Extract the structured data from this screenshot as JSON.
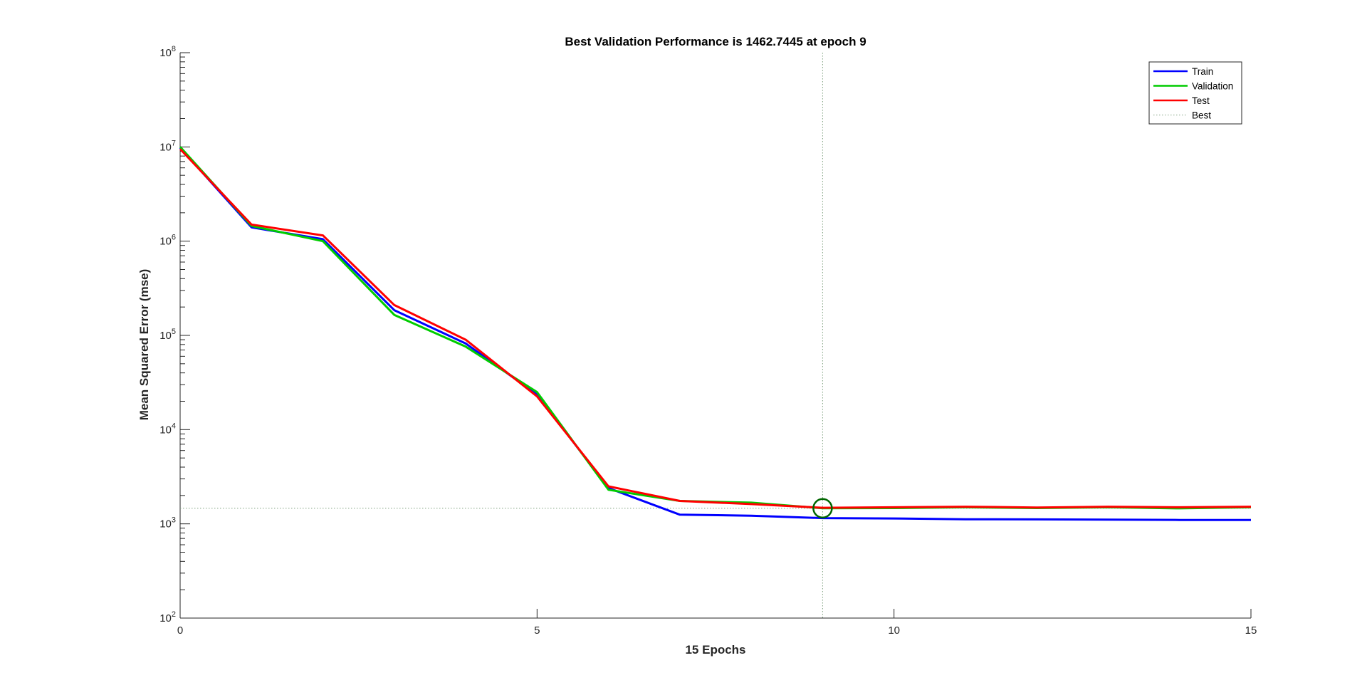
{
  "chart_data": {
    "type": "line",
    "title": "Best Validation Performance is 1462.7445 at epoch 9",
    "xlabel": "15 Epochs",
    "ylabel": "Mean Squared Error  (mse)",
    "xlim": [
      0,
      15
    ],
    "ylim": [
      100,
      100000000
    ],
    "yscale": "log",
    "x_ticks": [
      "0",
      "5",
      "10",
      "15"
    ],
    "y_ticks": [
      {
        "base": "10",
        "exp": "2"
      },
      {
        "base": "10",
        "exp": "3"
      },
      {
        "base": "10",
        "exp": "4"
      },
      {
        "base": "10",
        "exp": "5"
      },
      {
        "base": "10",
        "exp": "6"
      },
      {
        "base": "10",
        "exp": "7"
      },
      {
        "base": "10",
        "exp": "8"
      }
    ],
    "grid": false,
    "legend_position": "top-right",
    "x": [
      0,
      1,
      2,
      3,
      4,
      5,
      6,
      7,
      8,
      9,
      10,
      11,
      12,
      13,
      14,
      15
    ],
    "series": [
      {
        "name": "Train",
        "color": "#0000ff",
        "values": [
          9800000,
          1400000,
          1050000,
          185000,
          82000,
          23500,
          2400,
          1250,
          1220,
          1150,
          1140,
          1120,
          1115,
          1110,
          1100,
          1100
        ]
      },
      {
        "name": "Validation",
        "color": "#00cc00",
        "values": [
          10000000,
          1450000,
          1000000,
          165000,
          76000,
          25000,
          2300,
          1750,
          1680,
          1462.7445,
          1470,
          1500,
          1470,
          1500,
          1460,
          1500
        ]
      },
      {
        "name": "Test",
        "color": "#ff0000",
        "values": [
          9500000,
          1500000,
          1150000,
          210000,
          90000,
          22500,
          2500,
          1750,
          1620,
          1480,
          1500,
          1520,
          1490,
          1520,
          1500,
          1520
        ]
      }
    ],
    "best": {
      "name": "Best",
      "epoch": 9,
      "value": 1462.7445,
      "marker_color": "#006600",
      "line_color": "#7fa07f"
    }
  }
}
